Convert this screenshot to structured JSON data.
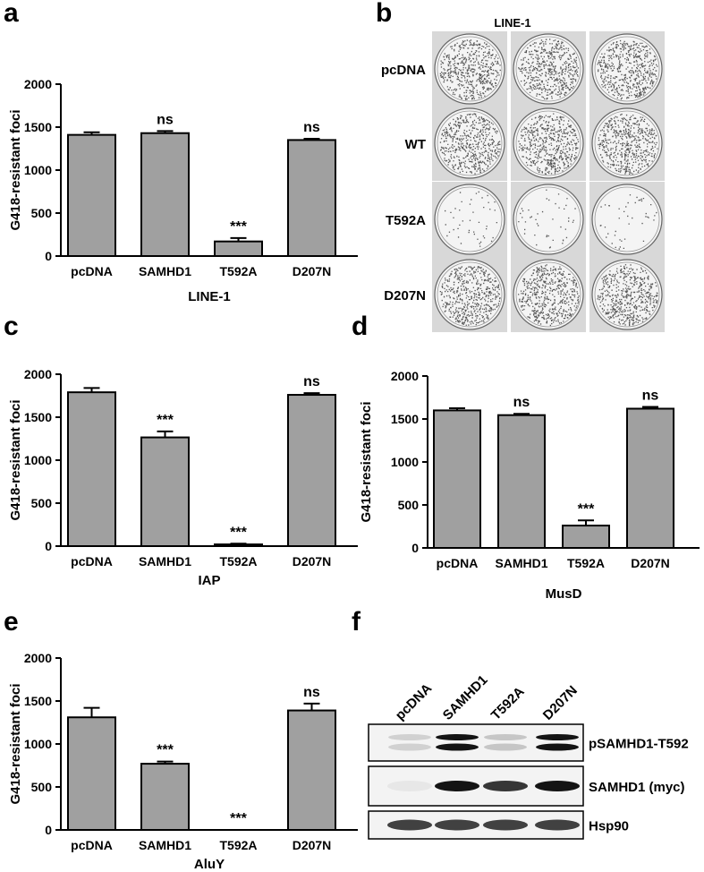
{
  "panels": {
    "a": "a",
    "b": "b",
    "c": "c",
    "d": "d",
    "e": "e",
    "f": "f"
  },
  "chart_data": [
    {
      "id": "a",
      "type": "bar",
      "categories": [
        "pcDNA",
        "SAMHD1",
        "T592A",
        "D207N"
      ],
      "values": [
        1410,
        1430,
        170,
        1350
      ],
      "errors": [
        30,
        25,
        40,
        15
      ],
      "significance": [
        "",
        "ns",
        "***",
        "ns"
      ],
      "xlabel": "LINE-1",
      "ylabel": "G418-resistant foci",
      "ylim": [
        0,
        2000
      ],
      "yticks": [
        0,
        500,
        1000,
        1500,
        2000
      ],
      "bar_color": "#a0a0a0"
    },
    {
      "id": "c",
      "type": "bar",
      "categories": [
        "pcDNA",
        "SAMHD1",
        "T592A",
        "D207N"
      ],
      "values": [
        1790,
        1265,
        20,
        1760
      ],
      "errors": [
        50,
        70,
        8,
        20
      ],
      "significance": [
        "",
        "***",
        "***",
        "ns"
      ],
      "xlabel": "IAP",
      "ylabel": "G418-resistant foci",
      "ylim": [
        0,
        2000
      ],
      "yticks": [
        0,
        500,
        1000,
        1500,
        2000
      ],
      "bar_color": "#a0a0a0"
    },
    {
      "id": "d",
      "type": "bar",
      "categories": [
        "pcDNA",
        "SAMHD1",
        "T592A",
        "D207N"
      ],
      "values": [
        1600,
        1545,
        260,
        1620
      ],
      "errors": [
        25,
        15,
        60,
        20
      ],
      "significance": [
        "",
        "ns",
        "***",
        "ns"
      ],
      "xlabel": "MusD",
      "ylabel": "G418-resistant foci",
      "ylim": [
        0,
        2000
      ],
      "yticks": [
        0,
        500,
        1000,
        1500,
        2000
      ],
      "bar_color": "#a0a0a0"
    },
    {
      "id": "e",
      "type": "bar",
      "categories": [
        "pcDNA",
        "SAMHD1",
        "T592A",
        "D207N"
      ],
      "values": [
        1310,
        770,
        0,
        1390
      ],
      "errors": [
        110,
        25,
        0,
        80
      ],
      "significance": [
        "",
        "***",
        "***",
        "ns"
      ],
      "xlabel": "AluY",
      "ylabel": "G418-resistant foci",
      "ylim": [
        0,
        2000
      ],
      "yticks": [
        0,
        500,
        1000,
        1500,
        2000
      ],
      "bar_color": "#a0a0a0"
    }
  ],
  "plates": {
    "title": "LINE-1",
    "rows": [
      {
        "label": "pcDNA",
        "density": "high"
      },
      {
        "label": "WT",
        "density": "high"
      },
      {
        "label": "T592A",
        "density": "low"
      },
      {
        "label": "D207N",
        "density": "high"
      }
    ]
  },
  "western": {
    "lanes": [
      "pcDNA",
      "SAMHD1",
      "T592A",
      "D207N"
    ],
    "blots": [
      {
        "label": "pSAMHD1-T592",
        "bands": [
          0.15,
          1.0,
          0.2,
          1.0
        ],
        "double": true
      },
      {
        "label": "SAMHD1 (myc)",
        "bands": [
          0.05,
          1.0,
          0.85,
          1.0
        ],
        "double": false
      },
      {
        "label": "Hsp90",
        "bands": [
          0.8,
          0.8,
          0.8,
          0.8
        ],
        "double": false
      }
    ]
  }
}
